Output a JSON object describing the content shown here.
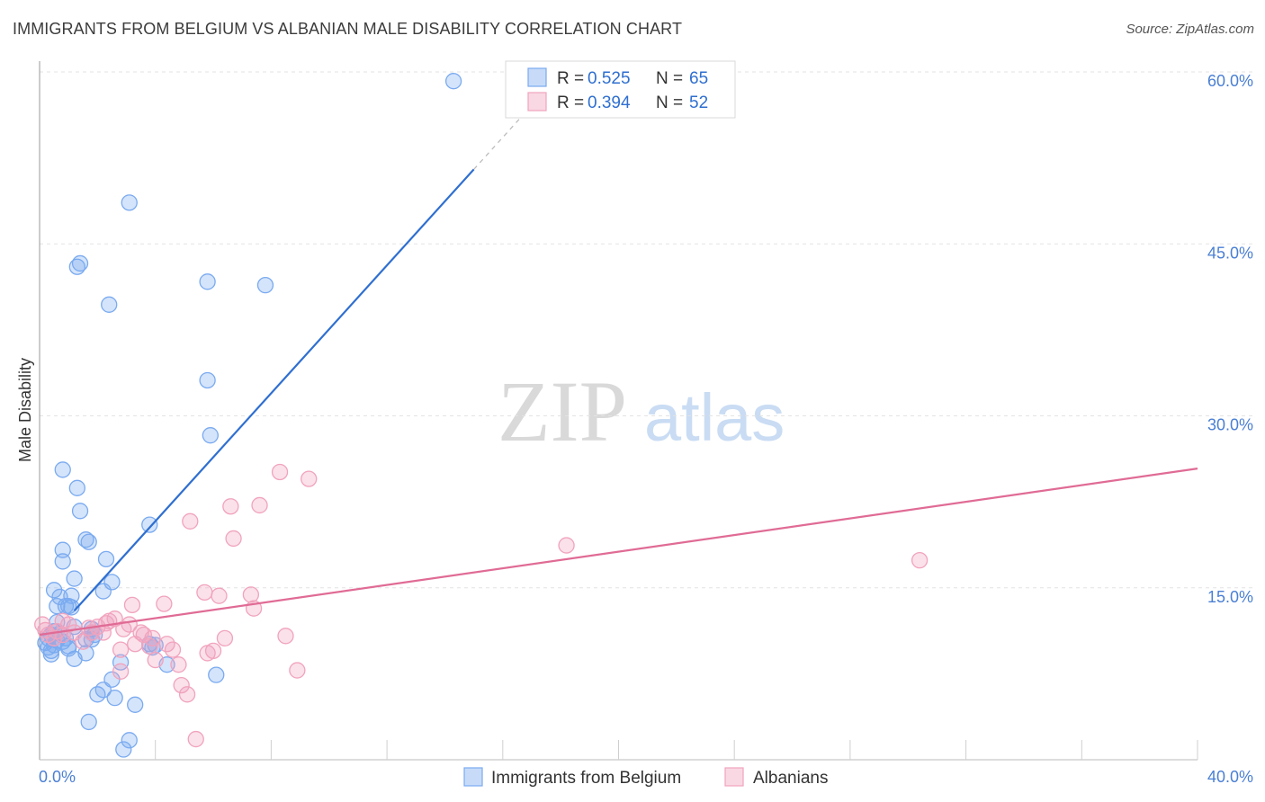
{
  "chart_data": {
    "type": "scatter",
    "title": "IMMIGRANTS FROM BELGIUM VS ALBANIAN MALE DISABILITY CORRELATION CHART",
    "source": "Source: ZipAtlas.com",
    "xlabel": "",
    "ylabel": "Male Disability",
    "xlim": [
      0,
      40
    ],
    "ylim": [
      0,
      60
    ],
    "x_tick_labels": [
      "0.0%",
      "40.0%"
    ],
    "y_ticks": [
      15,
      30,
      45,
      60
    ],
    "y_tick_labels": [
      "15.0%",
      "30.0%",
      "45.0%",
      "60.0%"
    ],
    "grid": true,
    "watermark": {
      "zip": "ZIP",
      "atlas": "atlas"
    },
    "legend": {
      "position": "top-center",
      "entries": [
        {
          "r_label": "R = ",
          "r_value": "0.525",
          "n_label": "N = ",
          "n_value": "65"
        },
        {
          "r_label": "R = ",
          "r_value": "0.394",
          "n_label": "N = ",
          "n_value": "52"
        }
      ]
    },
    "series": [
      {
        "name": "Immigrants from Belgium",
        "color": "#7aaaf0",
        "fill": "rgba(122,170,240,0.32)",
        "trend_color": "#2f6fd0",
        "trend": {
          "x0": 1.2,
          "y0": 13.0,
          "x1": 15.0,
          "y1": 51.5,
          "dash_to_x": 17.6
        },
        "points": [
          [
            0.2,
            10.2
          ],
          [
            0.3,
            9.8
          ],
          [
            0.3,
            10.6
          ],
          [
            0.4,
            9.5
          ],
          [
            0.4,
            10.9
          ],
          [
            0.5,
            11.2
          ],
          [
            0.5,
            10.0
          ],
          [
            0.6,
            10.4
          ],
          [
            0.6,
            12.0
          ],
          [
            0.7,
            11.0
          ],
          [
            0.5,
            14.8
          ],
          [
            0.6,
            13.4
          ],
          [
            0.7,
            14.2
          ],
          [
            0.8,
            25.3
          ],
          [
            0.8,
            18.3
          ],
          [
            0.8,
            17.3
          ],
          [
            0.9,
            13.4
          ],
          [
            0.9,
            10.6
          ],
          [
            1.0,
            13.4
          ],
          [
            1.0,
            9.9
          ],
          [
            1.1,
            13.3
          ],
          [
            1.1,
            14.3
          ],
          [
            1.2,
            11.6
          ],
          [
            1.2,
            15.8
          ],
          [
            1.2,
            8.8
          ],
          [
            1.3,
            23.7
          ],
          [
            1.3,
            43.0
          ],
          [
            1.4,
            43.3
          ],
          [
            1.4,
            21.7
          ],
          [
            1.6,
            10.5
          ],
          [
            1.6,
            9.3
          ],
          [
            1.6,
            19.2
          ],
          [
            1.7,
            19.0
          ],
          [
            1.7,
            3.3
          ],
          [
            1.8,
            11.4
          ],
          [
            1.8,
            11.1
          ],
          [
            1.9,
            10.9
          ],
          [
            2.0,
            5.7
          ],
          [
            2.2,
            6.1
          ],
          [
            2.2,
            14.7
          ],
          [
            2.3,
            17.5
          ],
          [
            2.4,
            39.7
          ],
          [
            2.5,
            15.5
          ],
          [
            2.5,
            7.0
          ],
          [
            2.6,
            5.4
          ],
          [
            2.8,
            8.5
          ],
          [
            2.9,
            0.9
          ],
          [
            3.1,
            1.7
          ],
          [
            3.1,
            48.6
          ],
          [
            3.3,
            4.8
          ],
          [
            3.8,
            20.5
          ],
          [
            3.8,
            10.1
          ],
          [
            3.9,
            9.8
          ],
          [
            4.4,
            8.3
          ],
          [
            5.8,
            41.7
          ],
          [
            5.8,
            33.1
          ],
          [
            5.9,
            28.3
          ],
          [
            6.1,
            7.4
          ],
          [
            7.8,
            41.4
          ],
          [
            14.3,
            59.2
          ],
          [
            0.4,
            9.2
          ],
          [
            0.8,
            10.3
          ],
          [
            1.0,
            9.7
          ],
          [
            1.8,
            10.5
          ],
          [
            4.0,
            10.0
          ]
        ]
      },
      {
        "name": "Albanians",
        "color": "#f1a3bd",
        "fill": "rgba(241,163,189,0.32)",
        "trend_color": "#e06b95",
        "trend": {
          "x0": 0,
          "y0": 10.9,
          "x1": 40,
          "y1": 25.4
        },
        "points": [
          [
            0.1,
            11.8
          ],
          [
            0.2,
            11.3
          ],
          [
            0.3,
            10.9
          ],
          [
            0.5,
            10.6
          ],
          [
            0.6,
            11.2
          ],
          [
            0.8,
            10.9
          ],
          [
            1.0,
            11.8
          ],
          [
            1.2,
            11.1
          ],
          [
            1.5,
            10.3
          ],
          [
            1.7,
            11.5
          ],
          [
            1.8,
            11.1
          ],
          [
            2.0,
            11.6
          ],
          [
            2.2,
            11.1
          ],
          [
            2.3,
            11.9
          ],
          [
            2.4,
            12.1
          ],
          [
            2.6,
            12.3
          ],
          [
            2.8,
            7.7
          ],
          [
            2.8,
            9.6
          ],
          [
            2.9,
            11.4
          ],
          [
            3.1,
            11.8
          ],
          [
            3.2,
            13.5
          ],
          [
            3.3,
            10.1
          ],
          [
            3.5,
            11.1
          ],
          [
            3.6,
            10.9
          ],
          [
            3.8,
            9.9
          ],
          [
            3.9,
            10.6
          ],
          [
            4.0,
            8.7
          ],
          [
            4.3,
            13.6
          ],
          [
            4.4,
            10.1
          ],
          [
            4.6,
            9.6
          ],
          [
            4.8,
            8.3
          ],
          [
            4.9,
            6.5
          ],
          [
            5.1,
            5.7
          ],
          [
            5.2,
            20.8
          ],
          [
            5.4,
            1.8
          ],
          [
            5.7,
            14.6
          ],
          [
            5.8,
            9.3
          ],
          [
            6.0,
            9.5
          ],
          [
            6.2,
            14.3
          ],
          [
            6.4,
            10.6
          ],
          [
            6.6,
            22.1
          ],
          [
            6.7,
            19.3
          ],
          [
            7.3,
            14.4
          ],
          [
            7.4,
            13.2
          ],
          [
            7.6,
            22.2
          ],
          [
            8.3,
            25.1
          ],
          [
            8.5,
            10.8
          ],
          [
            8.9,
            7.8
          ],
          [
            9.3,
            24.5
          ],
          [
            18.2,
            18.7
          ],
          [
            30.4,
            17.4
          ],
          [
            0.8,
            12.1
          ]
        ]
      }
    ]
  }
}
